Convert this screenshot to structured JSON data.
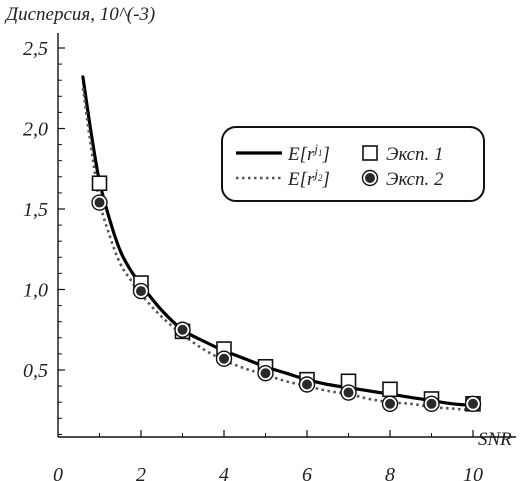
{
  "chart_data": {
    "type": "line",
    "ylabel": "Дисперсия, 10^(-3)",
    "xlabel": "SNR",
    "xlim": [
      0,
      10.5
    ],
    "ylim": [
      0.0,
      2.5
    ],
    "x_ticks": [
      0,
      2,
      4,
      6,
      8,
      10
    ],
    "x_tick_labels": [
      "0",
      "2",
      "4",
      "6",
      "8",
      "10"
    ],
    "y_ticks": [
      0.5,
      1.0,
      1.5,
      2.0,
      2.5
    ],
    "y_tick_labels": [
      "0,5",
      "1,0",
      "1,5",
      "2,0",
      "2,5"
    ],
    "grid": false,
    "legend_position": "center-right",
    "series": [
      {
        "name": "E[r^{j1}]",
        "style": "solid",
        "color": "#000000",
        "x": [
          0.6,
          0.8,
          1.0,
          1.25,
          1.5,
          1.75,
          2.0,
          2.5,
          3.0,
          3.5,
          4.0,
          4.5,
          5.0,
          5.5,
          6.0,
          6.5,
          7.0,
          7.5,
          8.0,
          8.5,
          9.0,
          9.5,
          10.0
        ],
        "y": [
          2.32,
          1.97,
          1.67,
          1.43,
          1.24,
          1.12,
          1.03,
          0.87,
          0.75,
          0.68,
          0.62,
          0.57,
          0.52,
          0.48,
          0.44,
          0.41,
          0.39,
          0.37,
          0.35,
          0.33,
          0.31,
          0.29,
          0.28
        ]
      },
      {
        "name": "E[r^{j2}]",
        "style": "dotted",
        "color": "#555555",
        "x": [
          0.6,
          0.8,
          1.0,
          1.25,
          1.5,
          1.75,
          2.0,
          2.5,
          3.0,
          3.5,
          4.0,
          4.5,
          5.0,
          5.5,
          6.0,
          6.5,
          7.0,
          7.5,
          8.0,
          8.5,
          9.0,
          9.5,
          10.0
        ],
        "y": [
          2.25,
          1.88,
          1.55,
          1.33,
          1.16,
          1.06,
          0.97,
          0.83,
          0.72,
          0.63,
          0.56,
          0.51,
          0.47,
          0.43,
          0.4,
          0.37,
          0.35,
          0.32,
          0.3,
          0.29,
          0.27,
          0.26,
          0.25
        ]
      }
    ],
    "markers": [
      {
        "name": "Эксп. 1",
        "shape": "open-square",
        "x": [
          1,
          2,
          3,
          4,
          5,
          6,
          7,
          8,
          9,
          10
        ],
        "y": [
          1.66,
          1.04,
          0.74,
          0.63,
          0.52,
          0.44,
          0.43,
          0.38,
          0.32,
          0.29
        ]
      },
      {
        "name": "Эксп. 2",
        "shape": "filled-circle",
        "x": [
          1,
          2,
          3,
          4,
          5,
          6,
          7,
          8,
          9,
          10
        ],
        "y": [
          1.54,
          0.99,
          0.75,
          0.57,
          0.48,
          0.41,
          0.36,
          0.29,
          0.29,
          0.29
        ]
      }
    ],
    "legend": {
      "line1_prefix": "E[r",
      "line1_exponent": "j",
      "line1_subscript": "1",
      "line2_prefix": "E[r",
      "line2_exponent": "j",
      "line2_subscript": "2",
      "close_bracket": "]",
      "marker1_label": "Эксп. 1",
      "marker2_label": "Эксп. 2"
    }
  }
}
